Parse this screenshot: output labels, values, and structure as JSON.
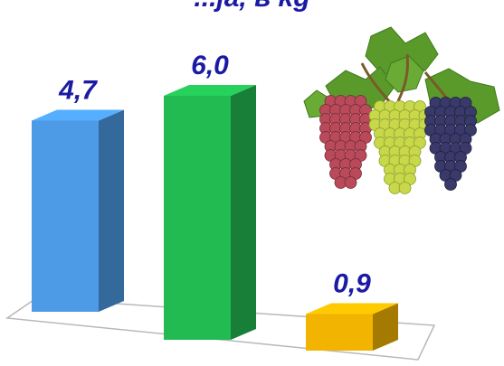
{
  "chart_data": {
    "type": "bar",
    "title_partial": "...ja, в kg",
    "categories": [
      "",
      "",
      ""
    ],
    "values": [
      4.7,
      6.0,
      0.9
    ],
    "data_labels": [
      "4,7",
      "6,0",
      "0,9"
    ],
    "colors": [
      "#4d9be6",
      "#22bb52",
      "#f2b400"
    ],
    "label_color": "#1a1aa6",
    "ylim": [
      0,
      6.5
    ],
    "grid": false,
    "legend": "none",
    "decoration": "grapes-illustration"
  }
}
